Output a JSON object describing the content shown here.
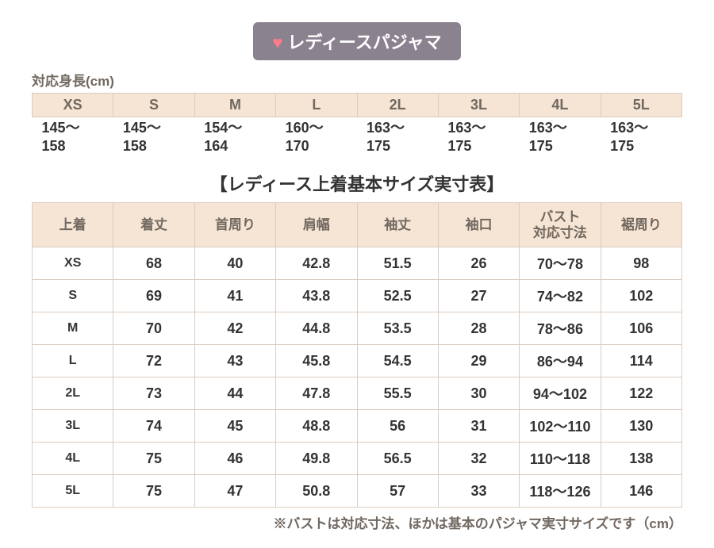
{
  "title": {
    "heart": "♥",
    "text": "レディースパジャマ",
    "bg_color": "#8b8290",
    "heart_color": "#ff7a8a",
    "text_color": "#ffffff"
  },
  "height_section": {
    "label": "対応身長(cm)",
    "headers": [
      "XS",
      "S",
      "M",
      "L",
      "2L",
      "3L",
      "4L",
      "5L"
    ],
    "values": [
      "145～158",
      "145～158",
      "154～164",
      "160～170",
      "163～175",
      "163～175",
      "163～175",
      "163～175"
    ]
  },
  "section_title": "【レディース上着基本サイズ実寸表】",
  "size_table": {
    "headers": [
      "上着",
      "着丈",
      "首周り",
      "肩幅",
      "袖丈",
      "袖口",
      "バスト\n対応寸法",
      "裾周り"
    ],
    "rows": [
      {
        "label": "XS",
        "cells": [
          "68",
          "40",
          "42.8",
          "51.5",
          "26",
          "70～78",
          "98"
        ]
      },
      {
        "label": "S",
        "cells": [
          "69",
          "41",
          "43.8",
          "52.5",
          "27",
          "74～82",
          "102"
        ]
      },
      {
        "label": "M",
        "cells": [
          "70",
          "42",
          "44.8",
          "53.5",
          "28",
          "78～86",
          "106"
        ]
      },
      {
        "label": "L",
        "cells": [
          "72",
          "43",
          "45.8",
          "54.5",
          "29",
          "86～94",
          "114"
        ]
      },
      {
        "label": "2L",
        "cells": [
          "73",
          "44",
          "47.8",
          "55.5",
          "30",
          "94～102",
          "122"
        ]
      },
      {
        "label": "3L",
        "cells": [
          "74",
          "45",
          "48.8",
          "56",
          "31",
          "102～110",
          "130"
        ]
      },
      {
        "label": "4L",
        "cells": [
          "75",
          "46",
          "49.8",
          "56.5",
          "32",
          "110～118",
          "138"
        ]
      },
      {
        "label": "5L",
        "cells": [
          "75",
          "47",
          "50.8",
          "57",
          "33",
          "118～126",
          "146"
        ]
      }
    ]
  },
  "footnote": "※バストは対応寸法、ほかは基本のパジャマ実寸サイズです（cm）",
  "colors": {
    "header_bg": "#f6e5d4",
    "header_text": "#716860",
    "border": "#dcccc0",
    "body_text": "#333333",
    "background": "#ffffff"
  }
}
